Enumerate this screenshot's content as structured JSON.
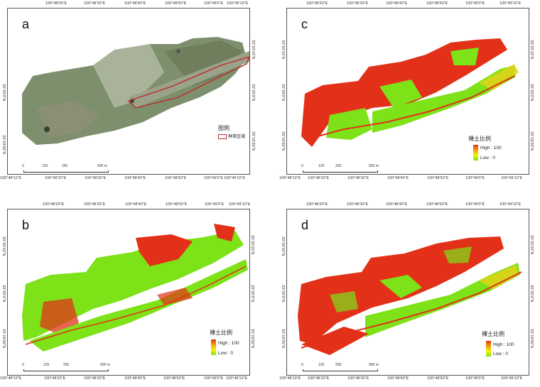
{
  "panels": [
    {
      "id": "a",
      "label": "a",
      "top_ticks": [
        "100°48'20\"E",
        "100°48'30\"E",
        "100°48'40\"E",
        "100°48'50\"E",
        "100°49'0\"E",
        "100°49'10\"E"
      ],
      "bottom_ticks": [
        "100°48'10\"E",
        "100°48'20\"E",
        "100°48'30\"E",
        "100°48'40\"E",
        "100°48'50\"E",
        "100°49'0\"E",
        "100°49'10\"E"
      ],
      "left_ticks": [
        "33°20'0\"N",
        "33°19'50\"N"
      ],
      "right_ticks": [
        "33°20'10\"N",
        "33°20'0\"N",
        "33°19'50\"N"
      ],
      "legend_title": "图例",
      "legend_item": "种草区域",
      "scale_labels": [
        "0",
        "125",
        "250",
        "500 m"
      ]
    },
    {
      "id": "c",
      "label": "c",
      "top_ticks": [
        "100°48'20\"E",
        "100°48'30\"E",
        "100°48'40\"E",
        "100°48'50\"E",
        "100°49'0\"E",
        "100°49'10\"E"
      ],
      "bottom_ticks": [
        "100°48'10\"E",
        "100°48'20\"E",
        "100°48'30\"E",
        "100°48'40\"E",
        "100°48'50\"E",
        "100°49'0\"E",
        "100°49'10\"E"
      ],
      "left_ticks": [
        "33°20'10\"N",
        "33°20'0\"N",
        "33°19'50\"N"
      ],
      "right_ticks": [
        "33°20'10\"N",
        "33°20'0\"N",
        "33°19'50\"N"
      ],
      "legend_title": "裸土比例",
      "legend_high": "High : 100",
      "legend_low": "Low : 0",
      "scale_labels": [
        "0",
        "125",
        "250",
        "500 m"
      ]
    },
    {
      "id": "b",
      "label": "b",
      "top_ticks": [
        "100°48'20\"E",
        "100°48'30\"E",
        "100°48'40\"E",
        "100°48'50\"E",
        "100°49'0\"E",
        "100°49'10\"E"
      ],
      "bottom_ticks": [
        "100°48'10\"E",
        "100°48'20\"E",
        "100°48'30\"E",
        "100°48'40\"E",
        "100°48'50\"E",
        "100°49'0\"E",
        "100°49'10\"E"
      ],
      "left_ticks": [
        "33°20'10\"N",
        "33°20'0\"N",
        "33°19'50\"N"
      ],
      "right_ticks": [
        "33°20'10\"N",
        "33°20'0\"N",
        "33°19'50\"N"
      ],
      "legend_title": "裸土比例",
      "legend_high": "High : 100",
      "legend_low": "Low : 0",
      "scale_labels": [
        "0",
        "125",
        "250",
        "500 m"
      ]
    },
    {
      "id": "d",
      "label": "d",
      "top_ticks": [
        "100°48'20\"E",
        "100°48'30\"E",
        "100°48'40\"E",
        "100°48'50\"E",
        "100°49'0\"E",
        "100°49'10\"E"
      ],
      "bottom_ticks": [
        "100°48'10\"E",
        "100°48'20\"E",
        "100°48'30\"E",
        "100°48'40\"E",
        "100°48'50\"E",
        "100°49'0\"E",
        "100°49'10\"E"
      ],
      "left_ticks": [
        "33°20'10\"N",
        "33°20'0\"N",
        "33°19'50\"N"
      ],
      "right_ticks": [
        "33°20'10\"N",
        "33°20'0\"N",
        "33°19'50\"N"
      ],
      "legend_title": "裸土比例",
      "legend_high": "High : 100",
      "legend_low": "Low : 0",
      "scale_labels": [
        "0",
        "125",
        "250",
        "500 m"
      ]
    }
  ],
  "colors": {
    "bare_soil_high": "#e23118",
    "bare_soil_low": "#7ee218",
    "planting_outline": "#c0282a",
    "imagery_base": "#8a9a78"
  }
}
